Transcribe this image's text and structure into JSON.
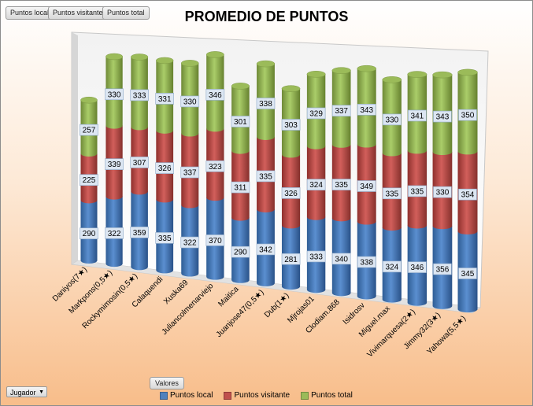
{
  "pivot": {
    "field_buttons": [
      "Puntos local",
      "Puntos visitante",
      "Puntos total"
    ],
    "values_button": "Valores",
    "row_field": "Jugador"
  },
  "colors": {
    "local": "#4f81bd",
    "visitante": "#c0504d",
    "total": "#9bbb59"
  },
  "chart_data": {
    "type": "bar",
    "stacked": true,
    "three_d": true,
    "title": "PROMEDIO DE PUNTOS",
    "categories": [
      "Daniyos(7★)",
      "Markpons(0,5★)",
      "Rockymimosin(0,5★)",
      "Calaquendi",
      "Xuska69",
      "Juliancolmenarviejo",
      "Maitica",
      "Juanjose47(0,5★)",
      "Dub(1★)",
      "Mjrojas01",
      "Clodiam.868",
      "Isidrosv",
      "Miguel.max",
      "Vivimarquesa(2★)",
      "Jimmy32(3★)",
      "Yahowa(5,5★)"
    ],
    "series": [
      {
        "name": "Puntos local",
        "values": [
          290,
          322,
          359,
          335,
          322,
          370,
          290,
          342,
          281,
          333,
          340,
          338,
          324,
          346,
          356,
          345
        ]
      },
      {
        "name": "Puntos visitante",
        "values": [
          225,
          339,
          307,
          326,
          337,
          323,
          311,
          335,
          326,
          324,
          335,
          349,
          335,
          335,
          330,
          354
        ]
      },
      {
        "name": "Puntos total",
        "values": [
          257,
          330,
          333,
          331,
          330,
          346,
          301,
          338,
          303,
          329,
          337,
          343,
          330,
          341,
          343,
          350
        ]
      }
    ],
    "legend_position": "bottom"
  }
}
